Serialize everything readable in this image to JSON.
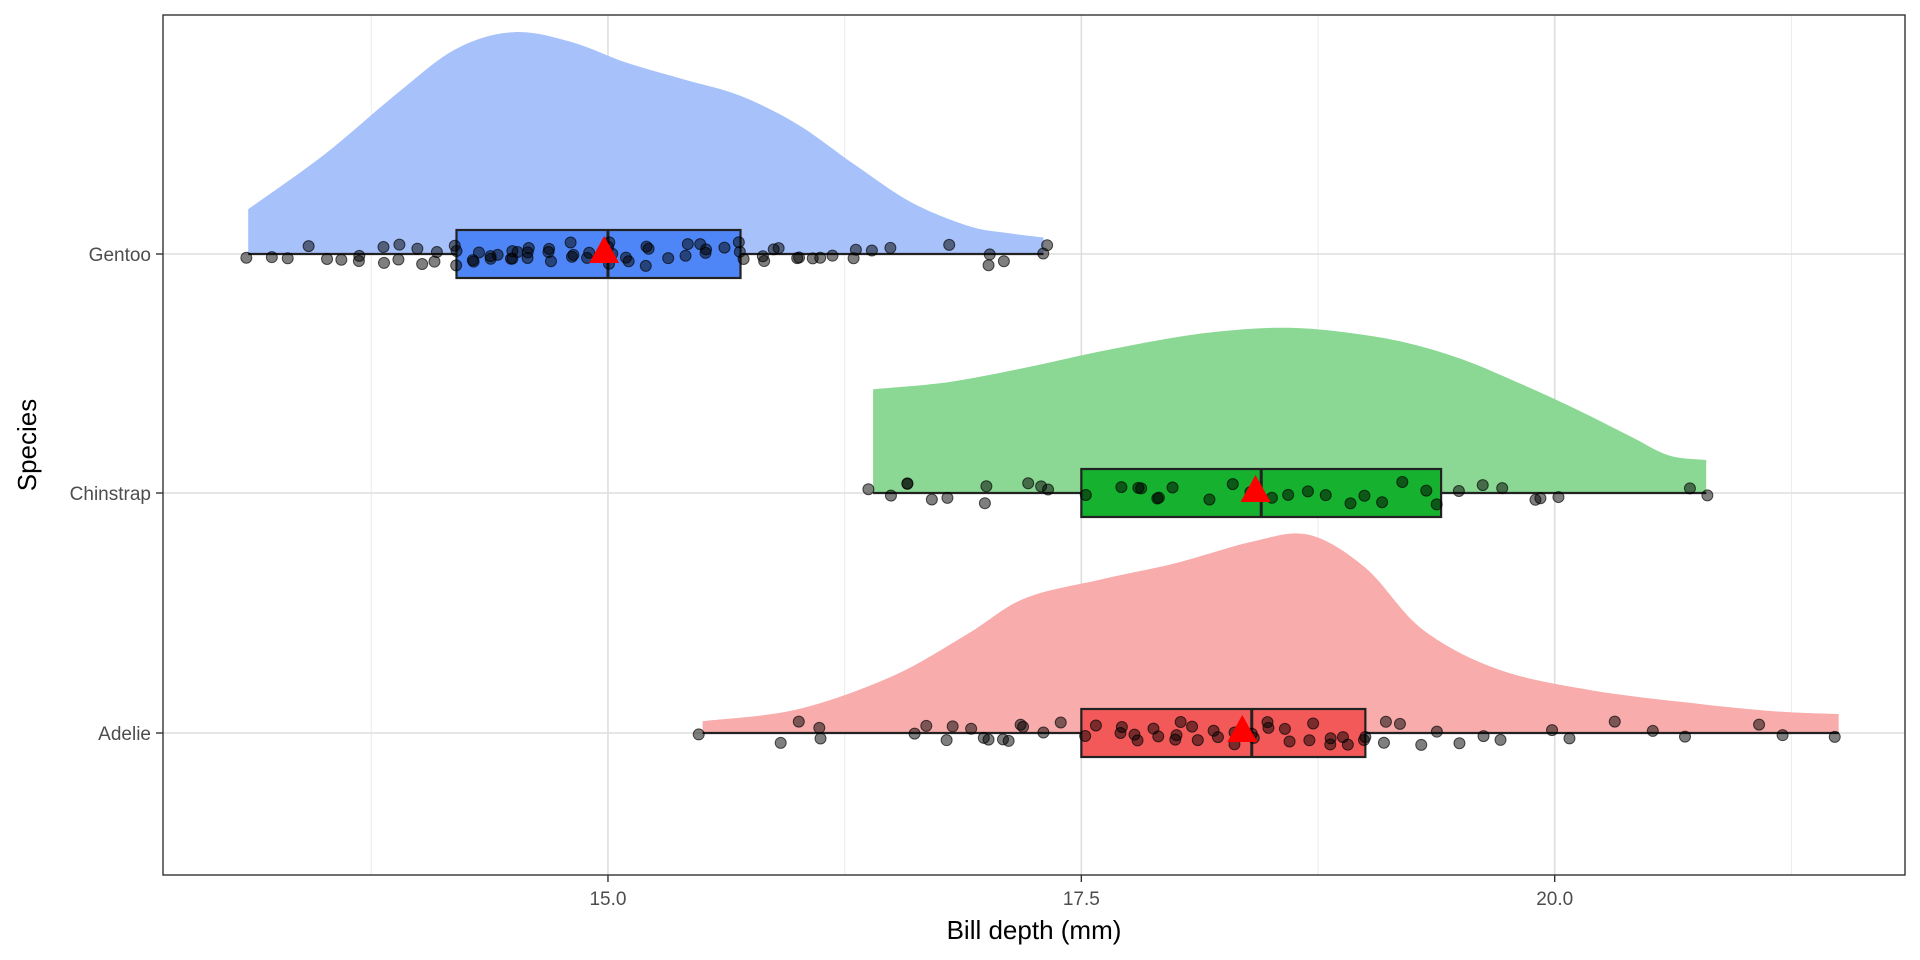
{
  "chart_data": {
    "type": "raincloud",
    "xlabel": "Bill depth (mm)",
    "ylabel": "Species",
    "xlim": [
      12.65,
      21.85
    ],
    "x_ticks": [
      15.0,
      17.5,
      20.0
    ],
    "x_tick_labels": [
      "15.0",
      "17.5",
      "20.0"
    ],
    "categories": [
      "Gentoo",
      "Chinstrap",
      "Adelie"
    ],
    "grid": true,
    "legend": "none",
    "mean_marker_color": "#ff0000",
    "groups": [
      {
        "name": "Gentoo",
        "color": "#4f86f7",
        "density_color": "#a7c1fb",
        "range": [
          13.1,
          17.3
        ],
        "box": {
          "q1": 14.2,
          "median": 15.0,
          "q3": 15.7
        },
        "mean": 14.98,
        "density": [
          [
            13.1,
            0.19
          ],
          [
            13.5,
            0.42
          ],
          [
            13.9,
            0.69
          ],
          [
            14.2,
            0.87
          ],
          [
            14.5,
            0.94
          ],
          [
            14.8,
            0.9
          ],
          [
            15.1,
            0.81
          ],
          [
            15.4,
            0.74
          ],
          [
            15.7,
            0.67
          ],
          [
            16.0,
            0.55
          ],
          [
            16.3,
            0.38
          ],
          [
            16.6,
            0.22
          ],
          [
            16.9,
            0.12
          ],
          [
            17.1,
            0.09
          ],
          [
            17.3,
            0.07
          ]
        ],
        "points": [
          13.1,
          13.2,
          13.3,
          13.4,
          13.5,
          13.6,
          13.7,
          13.7,
          13.8,
          13.8,
          13.9,
          13.9,
          14.0,
          14.0,
          14.1,
          14.1,
          14.2,
          14.2,
          14.2,
          14.3,
          14.3,
          14.3,
          14.4,
          14.4,
          14.4,
          14.5,
          14.5,
          14.5,
          14.5,
          14.6,
          14.6,
          14.6,
          14.7,
          14.7,
          14.7,
          14.8,
          14.8,
          14.8,
          14.9,
          14.9,
          15.0,
          15.0,
          15.0,
          15.0,
          15.1,
          15.1,
          15.2,
          15.2,
          15.2,
          15.3,
          15.4,
          15.4,
          15.5,
          15.5,
          15.5,
          15.6,
          15.7,
          15.7,
          15.7,
          15.8,
          15.8,
          15.9,
          15.9,
          16.0,
          16.0,
          16.1,
          16.1,
          16.2,
          16.3,
          16.3,
          16.4,
          16.5,
          16.8,
          17.0,
          17.0,
          17.1,
          17.3,
          17.3
        ]
      },
      {
        "name": "Chinstrap",
        "color": "#16b12e",
        "density_color": "#8ad893",
        "range": [
          16.4,
          20.8
        ],
        "box": {
          "q1": 17.5,
          "median": 18.45,
          "q3": 19.4
        },
        "mean": 18.42,
        "density": [
          [
            16.4,
            0.44
          ],
          [
            16.8,
            0.47
          ],
          [
            17.2,
            0.53
          ],
          [
            17.6,
            0.6
          ],
          [
            18.0,
            0.66
          ],
          [
            18.3,
            0.69
          ],
          [
            18.6,
            0.7
          ],
          [
            18.9,
            0.68
          ],
          [
            19.2,
            0.64
          ],
          [
            19.5,
            0.57
          ],
          [
            19.8,
            0.47
          ],
          [
            20.1,
            0.36
          ],
          [
            20.4,
            0.24
          ],
          [
            20.6,
            0.16
          ],
          [
            20.8,
            0.14
          ]
        ],
        "points": [
          16.4,
          16.5,
          16.6,
          16.6,
          16.7,
          16.8,
          17.0,
          17.0,
          17.2,
          17.3,
          17.3,
          17.5,
          17.7,
          17.8,
          17.8,
          17.9,
          17.9,
          18.0,
          18.2,
          18.3,
          18.4,
          18.5,
          18.6,
          18.7,
          18.8,
          18.9,
          19.0,
          19.1,
          19.2,
          19.3,
          19.4,
          19.5,
          19.6,
          19.7,
          19.9,
          19.9,
          20.0,
          20.7,
          20.8
        ]
      },
      {
        "name": "Adelie",
        "color": "#f4595a",
        "density_color": "#f8acab",
        "range": [
          15.5,
          21.5
        ],
        "box": {
          "q1": 17.5,
          "median": 18.4,
          "q3": 19.0
        },
        "mean": 18.35,
        "density": [
          [
            15.5,
            0.05
          ],
          [
            16.0,
            0.1
          ],
          [
            16.5,
            0.24
          ],
          [
            16.9,
            0.42
          ],
          [
            17.2,
            0.57
          ],
          [
            17.6,
            0.65
          ],
          [
            18.0,
            0.72
          ],
          [
            18.4,
            0.81
          ],
          [
            18.7,
            0.84
          ],
          [
            19.0,
            0.7
          ],
          [
            19.3,
            0.44
          ],
          [
            19.7,
            0.27
          ],
          [
            20.2,
            0.18
          ],
          [
            20.8,
            0.12
          ],
          [
            21.2,
            0.09
          ],
          [
            21.5,
            0.08
          ]
        ],
        "points": [
          15.5,
          15.9,
          16.0,
          16.1,
          16.1,
          16.6,
          16.7,
          16.8,
          16.8,
          16.9,
          17.0,
          17.0,
          17.1,
          17.1,
          17.2,
          17.2,
          17.3,
          17.4,
          17.5,
          17.6,
          17.7,
          17.7,
          17.8,
          17.8,
          17.9,
          17.9,
          18.0,
          18.0,
          18.0,
          18.1,
          18.1,
          18.2,
          18.2,
          18.3,
          18.3,
          18.4,
          18.4,
          18.5,
          18.5,
          18.6,
          18.6,
          18.7,
          18.7,
          18.8,
          18.8,
          18.9,
          18.9,
          19.0,
          19.0,
          19.1,
          19.1,
          19.2,
          19.3,
          19.4,
          19.5,
          19.6,
          19.7,
          20.0,
          20.1,
          20.3,
          20.5,
          20.7,
          21.1,
          21.2,
          21.5
        ]
      }
    ]
  }
}
